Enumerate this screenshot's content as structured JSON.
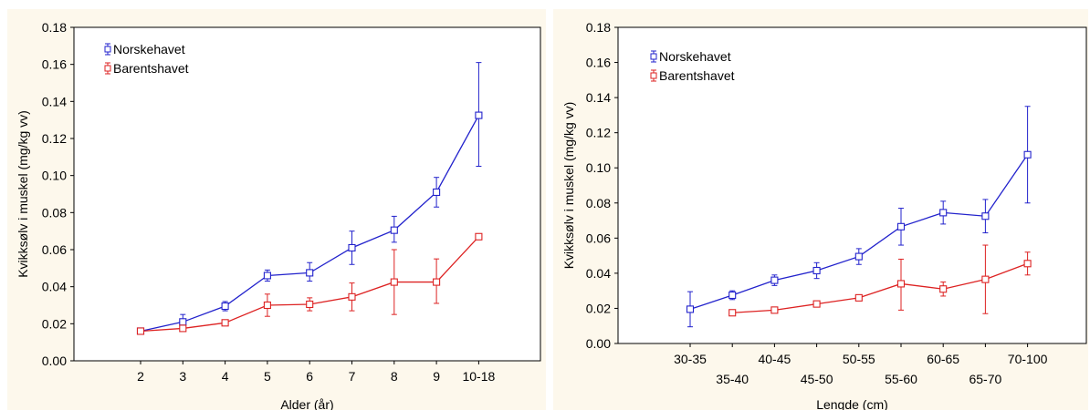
{
  "chart_data": [
    {
      "type": "line",
      "xlabel": "Alder (år)",
      "ylabel": "Kvikksølv i muskel (mg/kg vv)",
      "ylim": [
        0,
        0.18
      ],
      "yticks": [
        "0.00",
        "0.02",
        "0.04",
        "0.06",
        "0.08",
        "0.10",
        "0.12",
        "0.14",
        "0.16",
        "0.18"
      ],
      "categories": [
        "2",
        "3",
        "4",
        "5",
        "6",
        "7",
        "8",
        "9",
        "10-18"
      ],
      "grid": false,
      "error_bars": true,
      "legend_position": "top-left",
      "series": [
        {
          "name": "Norskehavet",
          "color": "#2222cc",
          "marker": "square",
          "values": [
            0.016,
            0.021,
            0.0295,
            0.046,
            0.0475,
            0.061,
            0.0705,
            0.091,
            0.1325
          ],
          "err_low": [
            0.015,
            0.017,
            0.027,
            0.043,
            0.043,
            0.052,
            0.064,
            0.083,
            0.105
          ],
          "err_high": [
            0.017,
            0.025,
            0.032,
            0.049,
            0.053,
            0.07,
            0.078,
            0.099,
            0.161
          ]
        },
        {
          "name": "Barentshavet",
          "color": "#dd2222",
          "marker": "square",
          "values": [
            0.016,
            0.0175,
            0.0205,
            0.03,
            0.0305,
            0.0345,
            0.0425,
            0.0425,
            0.067
          ],
          "err_low": [
            0.015,
            0.016,
            0.019,
            0.024,
            0.027,
            0.027,
            0.025,
            0.031,
            0.067
          ],
          "err_high": [
            0.017,
            0.019,
            0.022,
            0.036,
            0.034,
            0.042,
            0.06,
            0.055,
            0.067
          ]
        }
      ]
    },
    {
      "type": "line",
      "xlabel": "Lengde (cm)",
      "ylabel": "Kvikksølv i muskel (mg/kg vv)",
      "ylim": [
        0,
        0.18
      ],
      "yticks": [
        "0.00",
        "0.02",
        "0.04",
        "0.06",
        "0.08",
        "0.10",
        "0.12",
        "0.14",
        "0.16",
        "0.18"
      ],
      "categories": [
        "30-35",
        "35-40",
        "40-45",
        "45-50",
        "50-55",
        "55-60",
        "60-65",
        "65-70",
        "70-100"
      ],
      "grid": false,
      "error_bars": true,
      "legend_position": "top-left",
      "series": [
        {
          "name": "Norskehavet",
          "color": "#2222cc",
          "marker": "square",
          "values": [
            0.0195,
            0.0275,
            0.036,
            0.0415,
            0.0495,
            0.0665,
            0.0745,
            0.0725,
            0.1075
          ],
          "err_low": [
            0.0095,
            0.025,
            0.033,
            0.037,
            0.045,
            0.056,
            0.068,
            0.063,
            0.08
          ],
          "err_high": [
            0.0295,
            0.03,
            0.039,
            0.046,
            0.054,
            0.077,
            0.081,
            0.082,
            0.135
          ]
        },
        {
          "name": "Barentshavet",
          "color": "#dd2222",
          "marker": "square",
          "values": [
            null,
            0.0175,
            0.019,
            0.0225,
            0.026,
            0.034,
            0.031,
            0.0365,
            0.0455
          ],
          "err_low": [
            null,
            0.0175,
            0.019,
            0.0225,
            0.025,
            0.019,
            0.027,
            0.017,
            0.039
          ],
          "err_high": [
            null,
            0.0175,
            0.019,
            0.0225,
            0.027,
            0.048,
            0.035,
            0.056,
            0.052
          ]
        }
      ]
    }
  ]
}
